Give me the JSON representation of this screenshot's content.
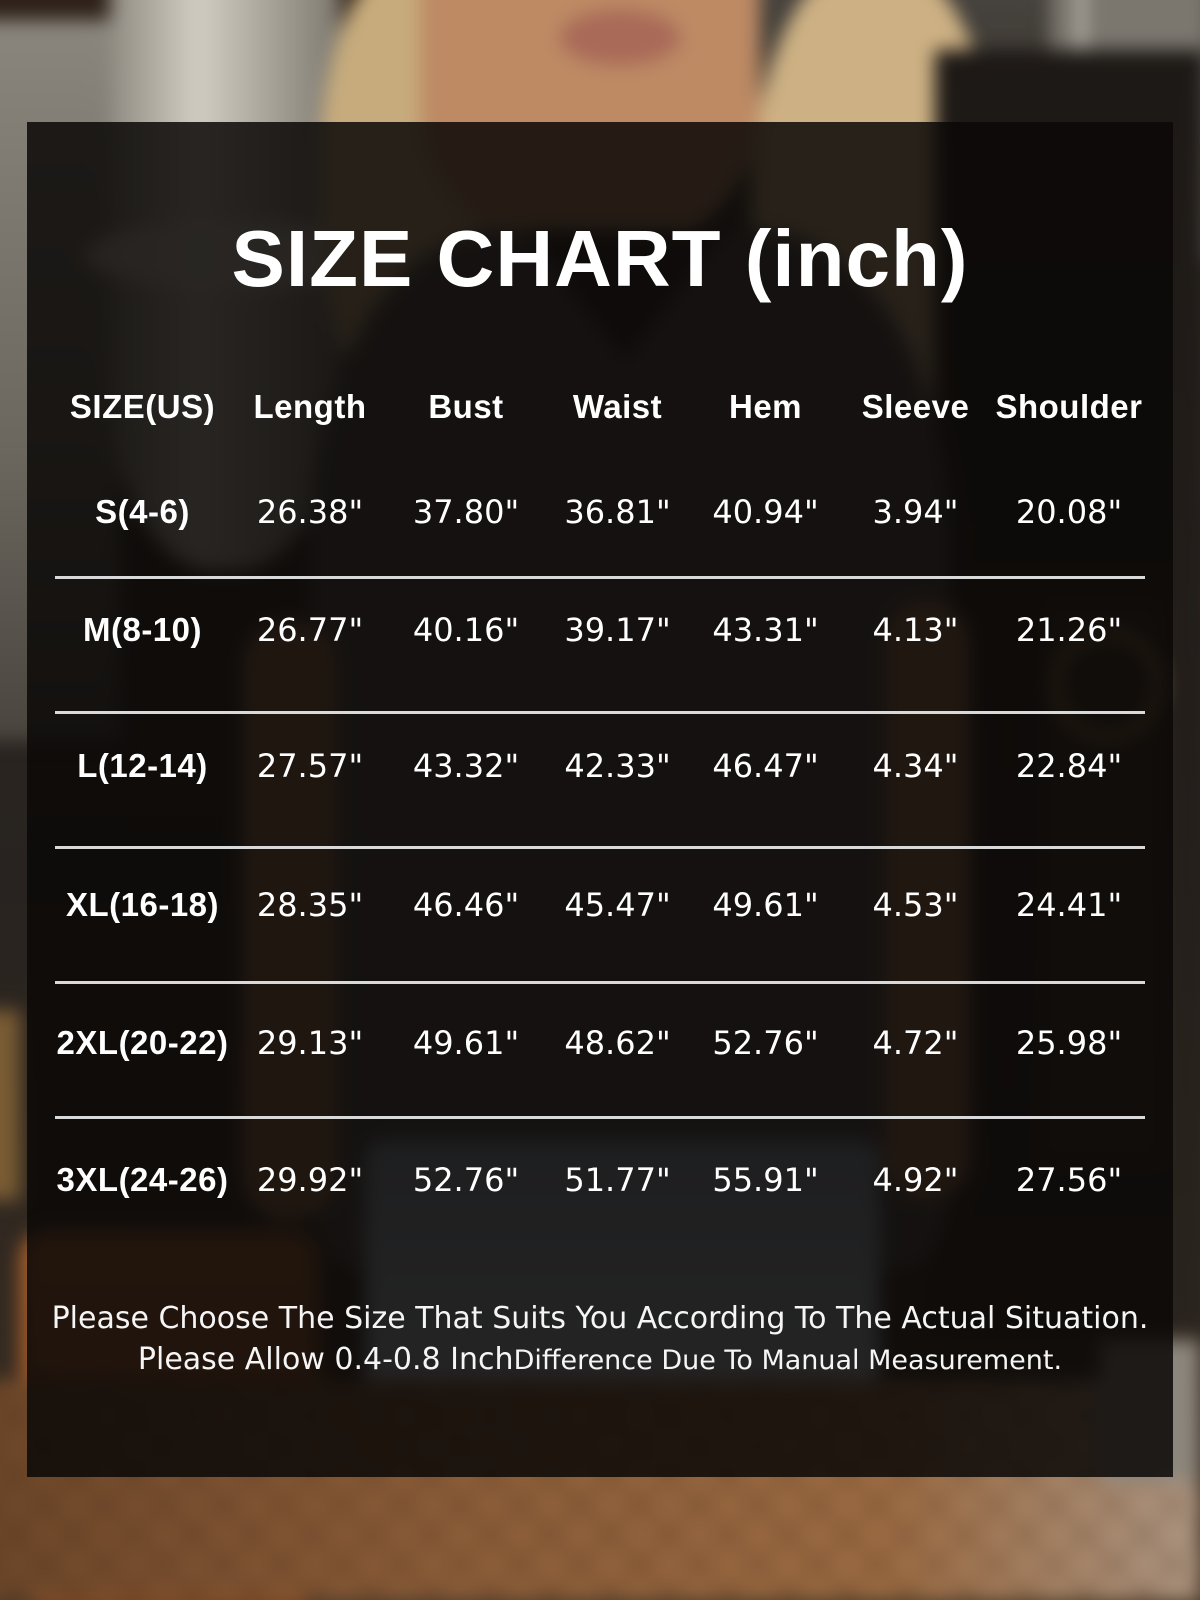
{
  "title": "SIZE CHART (inch)",
  "chart_data": {
    "type": "table",
    "title": "SIZE CHART (inch)",
    "columns": [
      "SIZE(US)",
      "Length",
      "Bust",
      "Waist",
      "Hem",
      "Sleeve",
      "Shoulder"
    ],
    "rows": [
      {
        "cells": [
          "S(4-6)",
          "26.38\"",
          "37.80\"",
          "36.81\"",
          "40.94\"",
          "3.94\"",
          "20.08\""
        ]
      },
      {
        "cells": [
          "M(8-10)",
          "26.77\"",
          "40.16\"",
          "39.17\"",
          "43.31\"",
          "4.13\"",
          "21.26\""
        ]
      },
      {
        "cells": [
          "L(12-14)",
          "27.57\"",
          "43.32\"",
          "42.33\"",
          "46.47\"",
          "4.34\"",
          "22.84\""
        ]
      },
      {
        "cells": [
          "XL(16-18)",
          "28.35\"",
          "46.46\"",
          "45.47\"",
          "49.61\"",
          "4.53\"",
          "24.41\""
        ]
      },
      {
        "cells": [
          "2XL(20-22)",
          "29.13\"",
          "49.61\"",
          "48.62\"",
          "52.76\"",
          "4.72\"",
          "25.98\""
        ]
      },
      {
        "cells": [
          "3XL(24-26)",
          "29.92\"",
          "52.76\"",
          "51.77\"",
          "55.91\"",
          "4.92\"",
          "27.56\""
        ]
      }
    ]
  },
  "footer": {
    "line1": "Please Choose The Size That Suits You According To The Actual Situation.",
    "line2_emphasis": "Please Allow 0.4-0.8 Inch",
    "line2_rest": " Difference Due To Manual Measurement."
  },
  "colors": {
    "panel_overlay": "rgba(10,8,7,0.855)",
    "text": "#ffffff",
    "divider": "#d9d9d9"
  }
}
